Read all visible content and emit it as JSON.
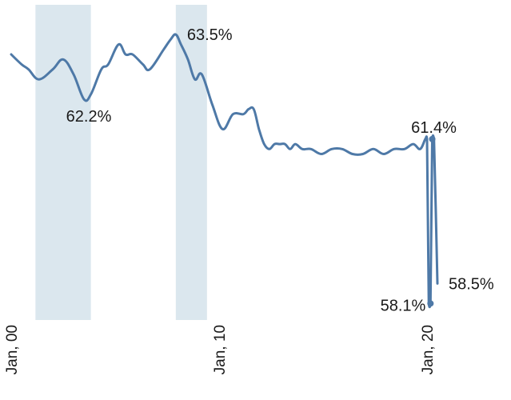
{
  "chart_data": {
    "type": "line",
    "title": "",
    "xlabel": "",
    "ylabel": "",
    "x_range": [
      "2000-01",
      "2021-01"
    ],
    "ylim": [
      57.8,
      64.0
    ],
    "grid": false,
    "legend": "none",
    "line_color": "#4e79a7",
    "shade_color": "#dbe7ee",
    "x_ticks": [
      {
        "date": "2000-01",
        "label": "Jan, 00"
      },
      {
        "date": "2010-01",
        "label": "Jan, 10"
      },
      {
        "date": "2020-01",
        "label": "Jan, 20"
      }
    ],
    "shaded_periods": [
      {
        "start": "2001-03",
        "end": "2003-11"
      },
      {
        "start": "2007-12",
        "end": "2009-06"
      }
    ],
    "series": [
      {
        "points": [
          [
            "2000-01",
            63.1
          ],
          [
            "2000-07",
            62.9
          ],
          [
            "2000-11",
            62.8
          ],
          [
            "2001-05",
            62.6
          ],
          [
            "2002-01",
            62.8
          ],
          [
            "2002-07",
            63.0
          ],
          [
            "2003-01",
            62.7
          ],
          [
            "2003-07",
            62.2
          ],
          [
            "2003-11",
            62.3
          ],
          [
            "2004-05",
            62.8
          ],
          [
            "2004-09",
            62.9
          ],
          [
            "2005-03",
            63.3
          ],
          [
            "2005-07",
            63.1
          ],
          [
            "2005-11",
            63.1
          ],
          [
            "2006-05",
            62.9
          ],
          [
            "2006-09",
            62.8
          ],
          [
            "2007-05",
            63.2
          ],
          [
            "2007-09",
            63.4
          ],
          [
            "2007-12",
            63.5
          ],
          [
            "2008-03",
            63.3
          ],
          [
            "2008-07",
            63.0
          ],
          [
            "2008-11",
            62.6
          ],
          [
            "2009-03",
            62.7
          ],
          [
            "2009-09",
            62.1
          ],
          [
            "2010-03",
            61.6
          ],
          [
            "2010-09",
            61.9
          ],
          [
            "2011-03",
            61.9
          ],
          [
            "2011-06",
            62.0
          ],
          [
            "2011-09",
            62.0
          ],
          [
            "2011-12",
            61.6
          ],
          [
            "2012-03",
            61.3
          ],
          [
            "2012-06",
            61.2
          ],
          [
            "2012-09",
            61.3
          ],
          [
            "2012-12",
            61.3
          ],
          [
            "2013-03",
            61.3
          ],
          [
            "2013-06",
            61.2
          ],
          [
            "2013-09",
            61.3
          ],
          [
            "2014-01",
            61.2
          ],
          [
            "2014-06",
            61.2
          ],
          [
            "2014-12",
            61.1
          ],
          [
            "2015-06",
            61.2
          ],
          [
            "2015-12",
            61.2
          ],
          [
            "2016-06",
            61.1
          ],
          [
            "2016-12",
            61.1
          ],
          [
            "2017-06",
            61.2
          ],
          [
            "2017-12",
            61.1
          ],
          [
            "2018-06",
            61.2
          ],
          [
            "2018-12",
            61.2
          ],
          [
            "2019-05",
            61.3
          ],
          [
            "2019-09",
            61.2
          ],
          [
            "2019-12",
            61.4
          ],
          [
            "2020-01",
            61.4
          ],
          [
            "2020-02",
            58.1
          ],
          [
            "2020-03",
            58.1
          ],
          [
            "2020-04",
            61.4
          ],
          [
            "2020-05",
            61.4
          ],
          [
            "2020-07",
            58.5
          ]
        ]
      }
    ],
    "annotations": [
      {
        "date": "2003-07",
        "value": 62.2,
        "label": "62.2%",
        "marker": false,
        "label_pos": "below"
      },
      {
        "date": "2007-12",
        "value": 63.5,
        "label": "63.5%",
        "marker": false,
        "label_pos": "right"
      },
      {
        "date": "2020-04",
        "value": 61.4,
        "label": "61.4%",
        "marker": true,
        "label_pos": "above"
      },
      {
        "date": "2020-03",
        "value": 58.1,
        "label": "58.1%",
        "marker": true,
        "label_pos": "left"
      },
      {
        "date": "2020-07",
        "value": 58.5,
        "label": "58.5%",
        "marker": false,
        "label_pos": "right"
      }
    ]
  }
}
